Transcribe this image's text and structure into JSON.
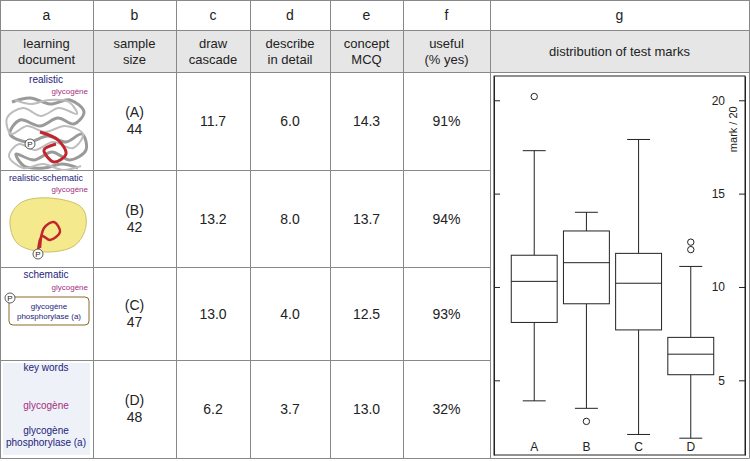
{
  "table": {
    "column_letters": [
      "a",
      "b",
      "c",
      "d",
      "e",
      "f",
      "g"
    ],
    "headers": [
      [
        "learning",
        "document"
      ],
      [
        "sample",
        "size"
      ],
      [
        "draw",
        "cascade"
      ],
      [
        "describe",
        "in detail"
      ],
      [
        "concept",
        "MCQ"
      ],
      [
        "useful",
        "(% yes)"
      ],
      [
        "distribution of test marks"
      ]
    ],
    "rows": [
      {
        "document": {
          "title": "realistic",
          "labels": [
            "glycogène"
          ],
          "marker_label": "P"
        },
        "group": "(A)",
        "sample_size": "44",
        "draw_cascade": "11.7",
        "describe_in_detail": "6.0",
        "concept_mcq": "14.3",
        "useful": "91%"
      },
      {
        "document": {
          "title": "realistic-schematic",
          "labels": [
            "glycogène"
          ],
          "marker_label": "P"
        },
        "group": "(B)",
        "sample_size": "42",
        "draw_cascade": "13.2",
        "describe_in_detail": "8.0",
        "concept_mcq": "13.7",
        "useful": "94%"
      },
      {
        "document": {
          "title": "schematic",
          "labels": [
            "glycogène",
            "glycogène phosphorylase (a)"
          ],
          "marker_label": "P"
        },
        "group": "(C)",
        "sample_size": "47",
        "draw_cascade": "13.0",
        "describe_in_detail": "4.0",
        "concept_mcq": "12.5",
        "useful": "93%"
      },
      {
        "document": {
          "title": "key words",
          "labels": [
            "glycogène",
            "glycogène phosphorylase (a)"
          ]
        },
        "group": "(D)",
        "sample_size": "48",
        "draw_cascade": "6.2",
        "describe_in_detail": "3.7",
        "concept_mcq": "13.0",
        "useful": "32%"
      }
    ]
  },
  "chart_data": {
    "type": "box",
    "y_label": "mark / 20",
    "categories": [
      "A",
      "B",
      "C",
      "D"
    ],
    "boxes": [
      {
        "whisker_low": 3.9,
        "q1": 8.1,
        "median": 10.3,
        "q3": 11.7,
        "whisker_high": 17.3,
        "outliers": [
          20.2
        ]
      },
      {
        "whisker_low": 3.5,
        "q1": 9.1,
        "median": 11.3,
        "q3": 13.0,
        "whisker_high": 14.0,
        "outliers": [
          2.8
        ]
      },
      {
        "whisker_low": 2.1,
        "q1": 7.7,
        "median": 10.2,
        "q3": 11.8,
        "whisker_high": 17.9,
        "outliers": []
      },
      {
        "whisker_low": 1.9,
        "q1": 5.3,
        "median": 6.4,
        "q3": 7.3,
        "whisker_high": 11.1,
        "outliers": [
          12.4,
          12.0
        ]
      }
    ],
    "ylim": [
      1.0,
      21.3
    ],
    "yticks": [
      5,
      10,
      15,
      20
    ]
  }
}
